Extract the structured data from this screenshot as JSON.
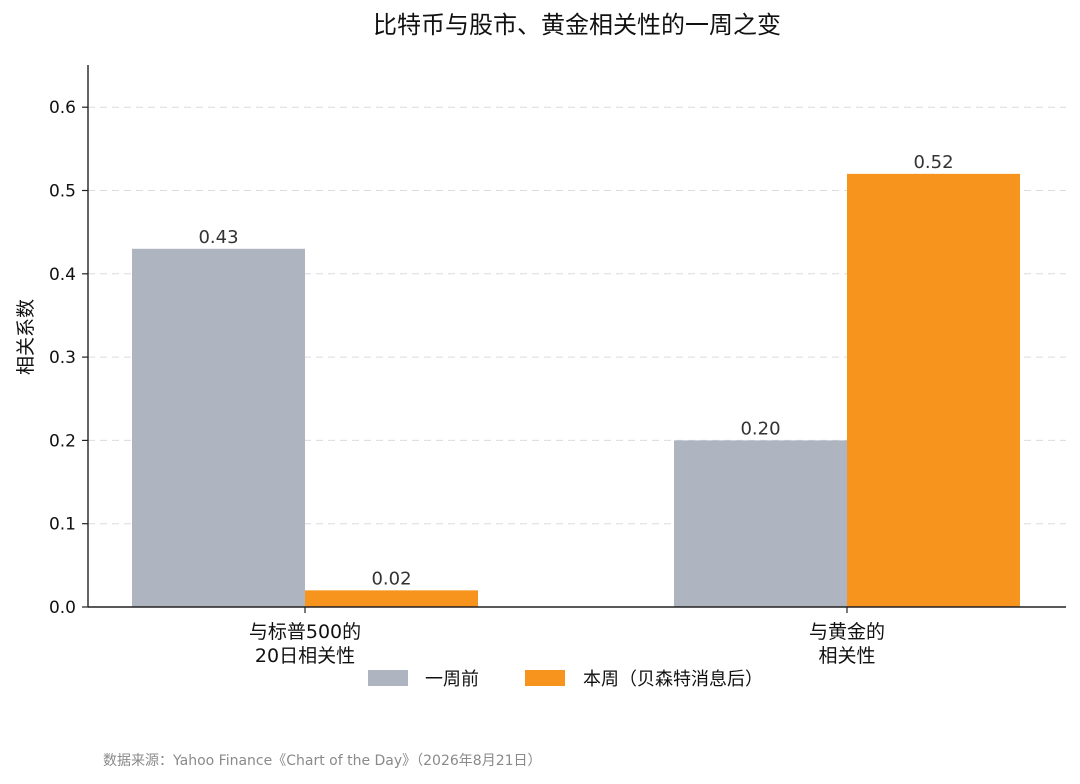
{
  "chart_data": {
    "type": "bar",
    "title": "比特币与股市、黄金相关性的一周之变",
    "ylabel": "相关系数",
    "xlabel": "",
    "ylim": [
      0,
      0.65
    ],
    "yticks": [
      "0.0",
      "0.1",
      "0.2",
      "0.3",
      "0.4",
      "0.5",
      "0.6"
    ],
    "grid": "horizontal-dashed",
    "legend_position": "bottom",
    "categories": [
      [
        "与标普500的",
        "20日相关性"
      ],
      [
        "与黄金的",
        "相关性"
      ]
    ],
    "series": [
      {
        "name": "一周前",
        "values": [
          0.43,
          0.2
        ],
        "labels": [
          "0.43",
          "0.20"
        ],
        "color": "#aeb4c0"
      },
      {
        "name": "本周（贝森特消息后）",
        "values": [
          0.02,
          0.52
        ],
        "labels": [
          "0.02",
          "0.52"
        ],
        "color": "#f7941d"
      }
    ]
  },
  "source": "数据来源：Yahoo Finance《Chart of the Day》（2026年8月21日）"
}
